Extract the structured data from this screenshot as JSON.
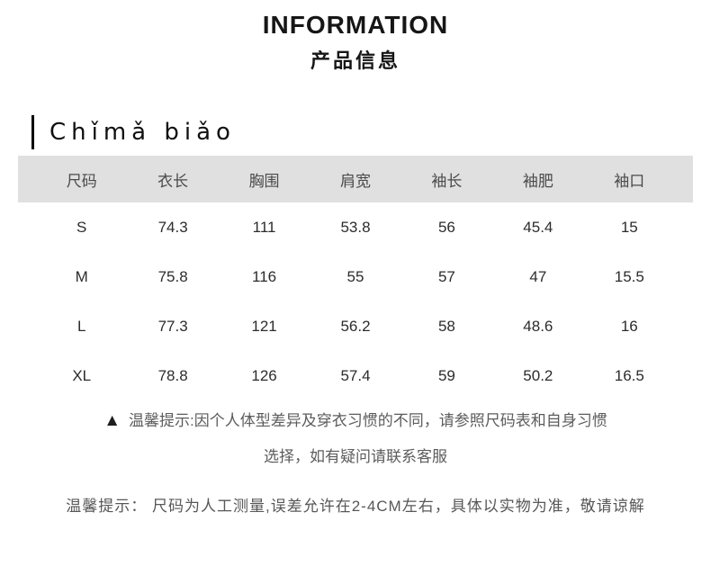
{
  "page": {
    "title_en": "INFORMATION",
    "title_zh": "产品信息"
  },
  "section": {
    "heading": "Chǐmǎ biǎo"
  },
  "size_table": {
    "columns": [
      "尺码",
      "衣长",
      "胸围",
      "肩宽",
      "袖长",
      "袖肥",
      "袖口"
    ],
    "rows": [
      [
        "S",
        "74.3",
        "111",
        "53.8",
        "56",
        "45.4",
        "15"
      ],
      [
        "M",
        "75.8",
        "116",
        "55",
        "57",
        "47",
        "15.5"
      ],
      [
        "L",
        "77.3",
        "121",
        "56.2",
        "58",
        "48.6",
        "16"
      ],
      [
        "XL",
        "78.8",
        "126",
        "57.4",
        "59",
        "50.2",
        "16.5"
      ]
    ]
  },
  "notes": {
    "warning_icon": "▲",
    "warning_line1": "温馨提示:因个人体型差异及穿衣习惯的不同，请参照尺码表和自身习惯",
    "warning_line2": "选择，如有疑问请联系客服",
    "measurement_note": "温馨提示： 尺码为人工测量,误差允许在2-4CM左右，具体以实物为准，敬请谅解"
  },
  "colors": {
    "header_band": "#e0e0e0",
    "heading_bar": "#000000",
    "text_dark": "#161616",
    "text_gray": "#5c5c5c"
  }
}
